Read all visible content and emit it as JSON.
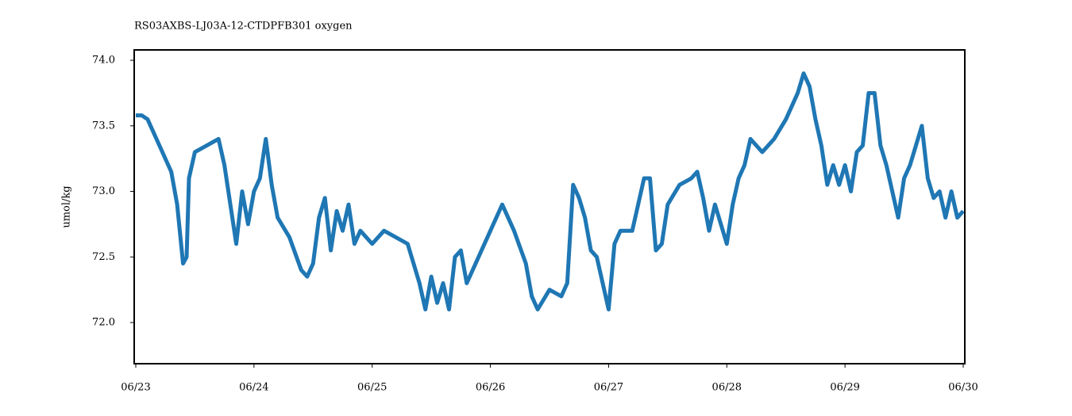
{
  "chart_data": {
    "type": "line",
    "title": "RS03AXBS-LJ03A-12-CTDPFB301 oxygen",
    "y_label": "umol/kg",
    "x": [
      0,
      0.05,
      0.1,
      0.2,
      0.3,
      0.35,
      0.4,
      0.43,
      0.45,
      0.5,
      0.6,
      0.7,
      0.75,
      0.8,
      0.85,
      0.9,
      0.95,
      1.0,
      1.05,
      1.1,
      1.15,
      1.2,
      1.3,
      1.4,
      1.45,
      1.5,
      1.55,
      1.6,
      1.65,
      1.7,
      1.75,
      1.8,
      1.85,
      1.9,
      2.0,
      2.1,
      2.2,
      2.3,
      2.4,
      2.45,
      2.5,
      2.55,
      2.6,
      2.65,
      2.7,
      2.75,
      2.8,
      2.9,
      3.0,
      3.1,
      3.2,
      3.3,
      3.35,
      3.4,
      3.5,
      3.6,
      3.65,
      3.7,
      3.75,
      3.8,
      3.85,
      3.9,
      4.0,
      4.05,
      4.1,
      4.2,
      4.3,
      4.35,
      4.4,
      4.45,
      4.5,
      4.6,
      4.7,
      4.75,
      4.8,
      4.85,
      4.9,
      4.95,
      5.0,
      5.05,
      5.1,
      5.15,
      5.2,
      5.3,
      5.4,
      5.5,
      5.6,
      5.65,
      5.7,
      5.75,
      5.8,
      5.85,
      5.9,
      5.95,
      6.0,
      6.05,
      6.1,
      6.15,
      6.2,
      6.25,
      6.3,
      6.35,
      6.4,
      6.45,
      6.5,
      6.55,
      6.6,
      6.65,
      6.7,
      6.75,
      6.8,
      6.85,
      6.9,
      6.95,
      7.0
    ],
    "series": [
      {
        "name": "oxygen",
        "color": "#1f77b4",
        "values": [
          73.58,
          73.58,
          73.55,
          73.35,
          73.15,
          72.9,
          72.45,
          72.5,
          73.1,
          73.3,
          73.35,
          73.4,
          73.2,
          72.9,
          72.6,
          73.0,
          72.75,
          73.0,
          73.1,
          73.4,
          73.05,
          72.8,
          72.65,
          72.4,
          72.35,
          72.45,
          72.8,
          72.95,
          72.55,
          72.85,
          72.7,
          72.9,
          72.6,
          72.7,
          72.6,
          72.7,
          72.65,
          72.6,
          72.3,
          72.1,
          72.35,
          72.15,
          72.3,
          72.1,
          72.5,
          72.55,
          72.3,
          72.5,
          72.7,
          72.9,
          72.7,
          72.45,
          72.2,
          72.1,
          72.25,
          72.2,
          72.3,
          73.05,
          72.95,
          72.8,
          72.55,
          72.5,
          72.1,
          72.6,
          72.7,
          72.7,
          73.1,
          73.1,
          72.55,
          72.6,
          72.9,
          73.05,
          73.1,
          73.15,
          72.95,
          72.7,
          72.9,
          72.75,
          72.6,
          72.9,
          73.1,
          73.2,
          73.4,
          73.3,
          73.4,
          73.55,
          73.75,
          73.9,
          73.8,
          73.55,
          73.35,
          73.05,
          73.2,
          73.05,
          73.2,
          73.0,
          73.3,
          73.35,
          73.75,
          73.75,
          73.35,
          73.2,
          73.0,
          72.8,
          73.1,
          73.2,
          73.35,
          73.5,
          73.1,
          72.95,
          73.0,
          72.8,
          73.0,
          72.8,
          72.85
        ]
      }
    ],
    "xlim": [
      -0.0134,
      7.0134
    ],
    "ylim": [
      71.686,
      74.079
    ],
    "xticks": [
      {
        "value": 0,
        "label": "06/23"
      },
      {
        "value": 1,
        "label": "06/24"
      },
      {
        "value": 2,
        "label": "06/25"
      },
      {
        "value": 3,
        "label": "06/26"
      },
      {
        "value": 4,
        "label": "06/27"
      },
      {
        "value": 5,
        "label": "06/28"
      },
      {
        "value": 6,
        "label": "06/29"
      },
      {
        "value": 7,
        "label": "06/30"
      }
    ],
    "yticks": [
      {
        "value": 72,
        "label": "72.0"
      },
      {
        "value": 72.5,
        "label": "72.5"
      },
      {
        "value": 73,
        "label": "73.0"
      },
      {
        "value": 73.5,
        "label": "73.5"
      },
      {
        "value": 74,
        "label": "74.0"
      }
    ],
    "grid": false
  }
}
